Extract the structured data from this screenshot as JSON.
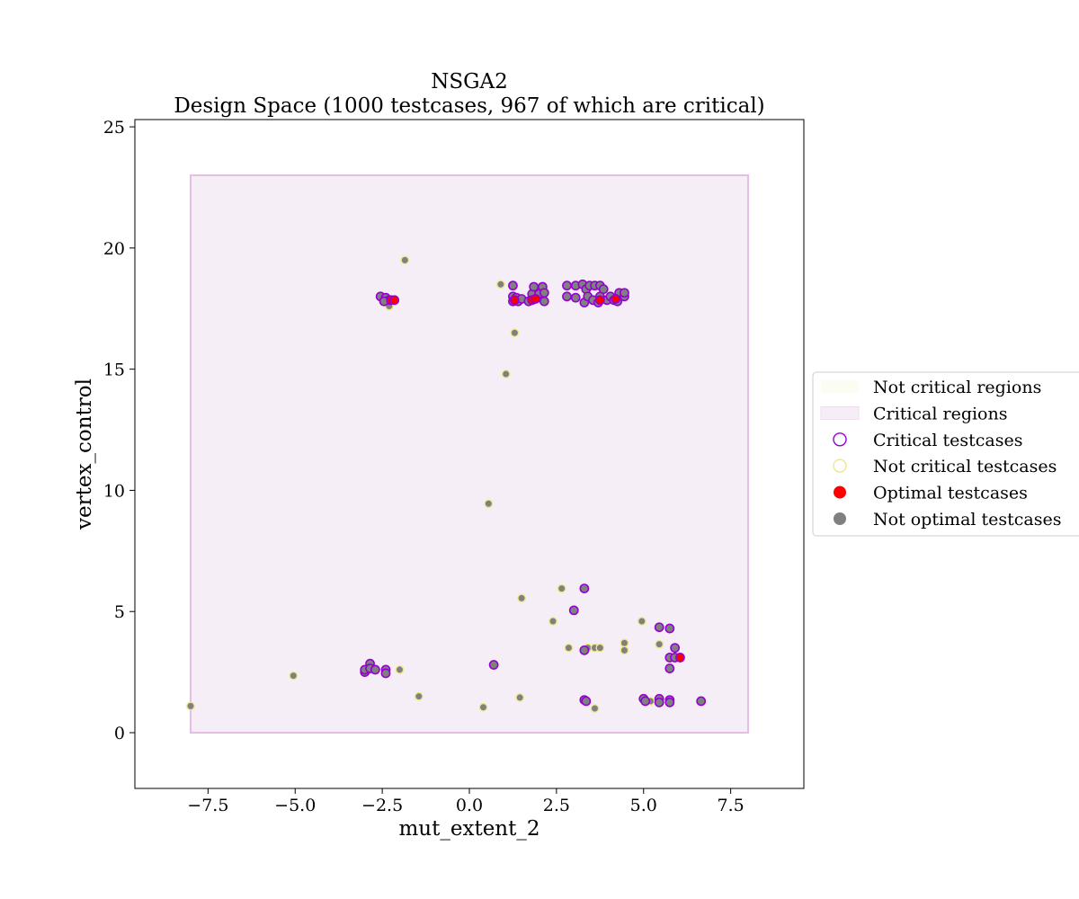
{
  "chart_data": {
    "type": "scatter",
    "title": "NSGA2",
    "subtitle": "Design Space (1000 testcases, 967 of which are critical)",
    "xlabel": "mut_extent_2",
    "ylabel": "vertex_control",
    "xlim": [
      -9.6,
      9.6
    ],
    "ylim": [
      -2.3,
      25.3
    ],
    "xticks": [
      -7.5,
      -5.0,
      -2.5,
      0.0,
      2.5,
      5.0,
      7.5
    ],
    "xtick_labels": [
      "−7.5",
      "−5.0",
      "−2.5",
      "0.0",
      "2.5",
      "5.0",
      "7.5"
    ],
    "yticks": [
      0,
      5,
      10,
      15,
      20,
      25
    ],
    "ytick_labels": [
      "0",
      "5",
      "10",
      "15",
      "20",
      "25"
    ],
    "critical_region": {
      "x": [
        -8.0,
        8.0
      ],
      "y": [
        0.0,
        23.0
      ]
    },
    "colors": {
      "critical_region_fill": "#f6eef6",
      "critical_region_edge": "#e6bde3",
      "not_critical_region_fill": "#fcfcf2",
      "critical_edge": "#9400d3",
      "not_critical_edge": "#f0e68c",
      "optimal_fill": "#ff0000",
      "not_optimal_fill": "#808080"
    },
    "legend": {
      "placement": "center-right outside",
      "entries": [
        {
          "label": "Not critical regions",
          "kind": "patch-not-critical"
        },
        {
          "label": "Critical regions",
          "kind": "patch-critical"
        },
        {
          "label": "Critical testcases",
          "kind": "ring-critical"
        },
        {
          "label": "Not critical testcases",
          "kind": "ring-not-critical"
        },
        {
          "label": "Optimal testcases",
          "kind": "dot-optimal"
        },
        {
          "label": "Not optimal testcases",
          "kind": "dot-not-optimal"
        }
      ]
    },
    "series": [
      {
        "name": "Critical testcases (not optimal)",
        "edge": "critical",
        "fill": "not_optimal",
        "points": [
          [
            -2.55,
            18.0
          ],
          [
            -2.4,
            17.95
          ],
          [
            -2.3,
            17.85
          ],
          [
            -2.45,
            17.8
          ],
          [
            -3.0,
            2.5
          ],
          [
            -3.0,
            2.6
          ],
          [
            -2.85,
            2.85
          ],
          [
            -2.85,
            2.65
          ],
          [
            -2.7,
            2.6
          ],
          [
            -2.4,
            2.6
          ],
          [
            -2.4,
            2.45
          ],
          [
            0.7,
            2.8
          ],
          [
            1.25,
            18.45
          ],
          [
            1.25,
            18.0
          ],
          [
            1.25,
            17.8
          ],
          [
            1.35,
            17.95
          ],
          [
            1.4,
            17.8
          ],
          [
            1.5,
            17.9
          ],
          [
            1.7,
            17.8
          ],
          [
            1.8,
            18.1
          ],
          [
            1.85,
            18.4
          ],
          [
            1.95,
            17.95
          ],
          [
            2.0,
            18.1
          ],
          [
            2.1,
            18.4
          ],
          [
            2.15,
            17.8
          ],
          [
            2.15,
            18.15
          ],
          [
            2.8,
            18.45
          ],
          [
            2.8,
            18.0
          ],
          [
            3.05,
            18.45
          ],
          [
            3.05,
            17.95
          ],
          [
            3.25,
            18.5
          ],
          [
            3.3,
            17.75
          ],
          [
            3.35,
            18.3
          ],
          [
            3.4,
            18.0
          ],
          [
            3.45,
            18.45
          ],
          [
            3.55,
            17.85
          ],
          [
            3.6,
            18.45
          ],
          [
            3.7,
            17.75
          ],
          [
            3.75,
            18.0
          ],
          [
            3.75,
            18.45
          ],
          [
            3.85,
            18.3
          ],
          [
            3.95,
            17.85
          ],
          [
            4.05,
            18.0
          ],
          [
            4.15,
            17.85
          ],
          [
            4.25,
            17.8
          ],
          [
            4.3,
            18.15
          ],
          [
            4.45,
            18.0
          ],
          [
            4.45,
            18.15
          ],
          [
            3.0,
            5.05
          ],
          [
            3.3,
            5.95
          ],
          [
            3.3,
            3.4
          ],
          [
            3.3,
            1.35
          ],
          [
            3.35,
            1.3
          ],
          [
            5.0,
            1.4
          ],
          [
            5.05,
            1.3
          ],
          [
            5.45,
            4.35
          ],
          [
            5.45,
            1.4
          ],
          [
            5.45,
            1.25
          ],
          [
            5.75,
            4.3
          ],
          [
            5.75,
            3.1
          ],
          [
            5.75,
            2.65
          ],
          [
            5.75,
            1.35
          ],
          [
            5.75,
            1.25
          ],
          [
            5.9,
            3.5
          ],
          [
            5.9,
            3.1
          ],
          [
            6.65,
            1.3
          ]
        ]
      },
      {
        "name": "Critical testcases (optimal)",
        "edge": "critical",
        "fill": "optimal",
        "points": [
          [
            -2.25,
            17.85
          ],
          [
            -2.15,
            17.85
          ],
          [
            1.3,
            17.85
          ],
          [
            1.8,
            17.85
          ],
          [
            1.9,
            17.9
          ],
          [
            3.75,
            17.85
          ],
          [
            4.2,
            17.9
          ],
          [
            6.05,
            3.1
          ]
        ]
      },
      {
        "name": "Not critical testcases (not optimal)",
        "edge": "not_critical",
        "fill": "not_optimal",
        "points": [
          [
            -8.0,
            1.1
          ],
          [
            -5.05,
            2.35
          ],
          [
            -2.3,
            17.6
          ],
          [
            -2.0,
            2.6
          ],
          [
            -1.85,
            19.5
          ],
          [
            -1.45,
            1.5
          ],
          [
            0.4,
            1.05
          ],
          [
            0.55,
            9.45
          ],
          [
            0.9,
            18.5
          ],
          [
            1.05,
            14.8
          ],
          [
            1.3,
            16.5
          ],
          [
            1.45,
            1.45
          ],
          [
            1.5,
            5.55
          ],
          [
            2.4,
            4.6
          ],
          [
            2.65,
            5.95
          ],
          [
            2.85,
            3.5
          ],
          [
            3.4,
            3.5
          ],
          [
            3.6,
            3.5
          ],
          [
            3.6,
            1.0
          ],
          [
            3.75,
            3.5
          ],
          [
            4.45,
            3.7
          ],
          [
            4.45,
            3.4
          ],
          [
            4.95,
            4.6
          ],
          [
            5.2,
            1.3
          ],
          [
            5.45,
            3.65
          ]
        ]
      }
    ]
  }
}
